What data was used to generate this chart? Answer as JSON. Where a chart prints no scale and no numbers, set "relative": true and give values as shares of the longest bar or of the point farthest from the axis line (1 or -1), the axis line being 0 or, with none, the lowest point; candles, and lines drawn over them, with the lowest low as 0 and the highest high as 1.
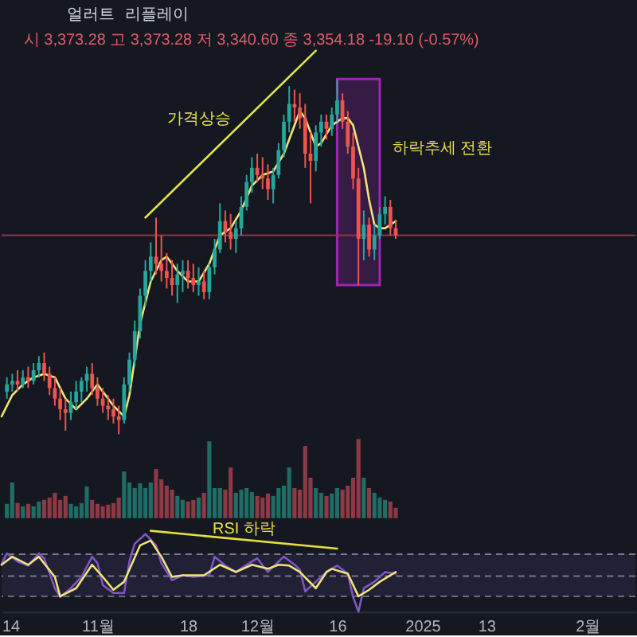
{
  "chart_data": [
    {
      "type": "candlestick",
      "relative": true,
      "subtitle": "시 3,373.28 고 3,373.28 저 3,340.60 종 3,354.18 -19.10 (-0.57%)",
      "annotations": [
        "얼러트",
        "리플레이"
      ],
      "x": [
        "2024-10-15",
        "2024-10-16",
        "2024-10-17",
        "2024-10-18",
        "2024-10-19",
        "2024-10-20",
        "2024-10-21",
        "2024-10-22",
        "2024-10-23",
        "2024-10-24",
        "2024-10-25",
        "2024-10-26",
        "2024-10-27",
        "2024-10-28",
        "2024-10-29",
        "2024-10-30",
        "2024-10-31",
        "2024-11-01",
        "2024-11-02",
        "2024-11-03",
        "2024-11-04",
        "2024-11-05",
        "2024-11-06",
        "2024-11-07",
        "2024-11-08",
        "2024-11-09",
        "2024-11-10",
        "2024-11-11",
        "2024-11-12",
        "2024-11-13",
        "2024-11-14",
        "2024-11-15",
        "2024-11-16",
        "2024-11-17",
        "2024-11-18",
        "2024-11-19",
        "2024-11-20",
        "2024-11-21",
        "2024-11-22",
        "2024-11-23",
        "2024-11-24",
        "2024-11-25",
        "2024-11-26",
        "2024-11-27",
        "2024-11-28",
        "2024-11-29",
        "2024-11-30",
        "2024-12-01",
        "2024-12-02",
        "2024-12-03",
        "2024-12-04",
        "2024-12-05",
        "2024-12-06",
        "2024-12-07",
        "2024-12-08",
        "2024-12-09",
        "2024-12-10",
        "2024-12-11",
        "2024-12-12",
        "2024-12-13",
        "2024-12-14",
        "2024-12-15",
        "2024-12-16",
        "2024-12-17",
        "2024-12-18",
        "2024-12-19",
        "2024-12-20",
        "2024-12-21",
        "2024-12-22",
        "2024-12-23",
        "2024-12-24",
        "2024-12-25",
        "2024-12-26",
        "2024-12-27"
      ],
      "ohlc": [
        [
          0.12,
          0.16,
          0.1,
          0.14
        ],
        [
          0.14,
          0.17,
          0.12,
          0.15
        ],
        [
          0.15,
          0.18,
          0.12,
          0.14
        ],
        [
          0.14,
          0.18,
          0.13,
          0.16
        ],
        [
          0.16,
          0.19,
          0.13,
          0.15
        ],
        [
          0.15,
          0.2,
          0.14,
          0.18
        ],
        [
          0.18,
          0.22,
          0.16,
          0.2
        ],
        [
          0.2,
          0.23,
          0.15,
          0.17
        ],
        [
          0.17,
          0.19,
          0.11,
          0.13
        ],
        [
          0.13,
          0.16,
          0.08,
          0.1
        ],
        [
          0.1,
          0.13,
          0.04,
          0.07
        ],
        [
          0.07,
          0.1,
          0.01,
          0.06
        ],
        [
          0.06,
          0.12,
          0.04,
          0.09
        ],
        [
          0.09,
          0.15,
          0.07,
          0.12
        ],
        [
          0.12,
          0.16,
          0.09,
          0.15
        ],
        [
          0.15,
          0.19,
          0.12,
          0.17
        ],
        [
          0.17,
          0.2,
          0.11,
          0.13
        ],
        [
          0.13,
          0.16,
          0.08,
          0.1
        ],
        [
          0.1,
          0.13,
          0.06,
          0.08
        ],
        [
          0.08,
          0.11,
          0.04,
          0.07
        ],
        [
          0.07,
          0.1,
          0.03,
          0.05
        ],
        [
          0.05,
          0.08,
          0.0,
          0.04
        ],
        [
          0.04,
          0.16,
          0.03,
          0.14
        ],
        [
          0.14,
          0.23,
          0.12,
          0.21
        ],
        [
          0.21,
          0.32,
          0.19,
          0.29
        ],
        [
          0.29,
          0.41,
          0.27,
          0.39
        ],
        [
          0.39,
          0.49,
          0.36,
          0.46
        ],
        [
          0.46,
          0.54,
          0.43,
          0.5
        ],
        [
          0.5,
          0.61,
          0.45,
          0.48
        ],
        [
          0.48,
          0.56,
          0.43,
          0.46
        ],
        [
          0.46,
          0.51,
          0.41,
          0.44
        ],
        [
          0.44,
          0.49,
          0.39,
          0.42
        ],
        [
          0.42,
          0.48,
          0.37,
          0.45
        ],
        [
          0.45,
          0.49,
          0.4,
          0.46
        ],
        [
          0.46,
          0.49,
          0.41,
          0.44
        ],
        [
          0.44,
          0.48,
          0.4,
          0.42
        ],
        [
          0.42,
          0.47,
          0.39,
          0.43
        ],
        [
          0.43,
          0.46,
          0.38,
          0.4
        ],
        [
          0.4,
          0.48,
          0.38,
          0.47
        ],
        [
          0.47,
          0.55,
          0.45,
          0.52
        ],
        [
          0.52,
          0.65,
          0.51,
          0.6
        ],
        [
          0.6,
          0.63,
          0.54,
          0.57
        ],
        [
          0.57,
          0.62,
          0.52,
          0.55
        ],
        [
          0.55,
          0.6,
          0.51,
          0.58
        ],
        [
          0.58,
          0.67,
          0.56,
          0.64
        ],
        [
          0.64,
          0.73,
          0.63,
          0.71
        ],
        [
          0.71,
          0.78,
          0.68,
          0.75
        ],
        [
          0.75,
          0.79,
          0.71,
          0.73
        ],
        [
          0.73,
          0.78,
          0.69,
          0.72
        ],
        [
          0.72,
          0.76,
          0.66,
          0.69
        ],
        [
          0.69,
          0.75,
          0.65,
          0.73
        ],
        [
          0.73,
          0.82,
          0.72,
          0.8
        ],
        [
          0.8,
          0.9,
          0.78,
          0.88
        ],
        [
          0.88,
          0.98,
          0.85,
          0.93
        ],
        [
          0.93,
          0.97,
          0.88,
          0.92
        ],
        [
          0.92,
          0.96,
          0.86,
          0.89
        ],
        [
          0.89,
          0.93,
          0.75,
          0.79
        ],
        [
          0.79,
          0.85,
          0.65,
          0.77
        ],
        [
          0.77,
          0.87,
          0.74,
          0.85
        ],
        [
          0.85,
          0.9,
          0.81,
          0.88
        ],
        [
          0.88,
          0.9,
          0.83,
          0.86
        ],
        [
          0.86,
          0.92,
          0.84,
          0.9
        ],
        [
          0.9,
          1.0,
          0.88,
          0.94
        ],
        [
          0.94,
          0.96,
          0.86,
          0.88
        ],
        [
          0.88,
          0.91,
          0.79,
          0.81
        ],
        [
          0.81,
          0.85,
          0.69,
          0.72
        ],
        [
          0.72,
          0.75,
          0.42,
          0.55
        ],
        [
          0.55,
          0.63,
          0.49,
          0.59
        ],
        [
          0.59,
          0.61,
          0.5,
          0.52
        ],
        [
          0.52,
          0.59,
          0.49,
          0.56
        ],
        [
          0.56,
          0.64,
          0.55,
          0.62
        ],
        [
          0.62,
          0.67,
          0.59,
          0.64
        ],
        [
          0.64,
          0.66,
          0.56,
          0.58
        ],
        [
          0.58,
          0.6,
          0.55,
          0.56
        ]
      ],
      "colors": [
        "#26a69a",
        "#26a69a",
        "#ef5350",
        "#26a69a",
        "#ef5350",
        "#26a69a",
        "#26a69a",
        "#ef5350",
        "#ef5350",
        "#ef5350",
        "#ef5350",
        "#ef5350",
        "#26a69a",
        "#26a69a",
        "#26a69a",
        "#26a69a",
        "#ef5350",
        "#ef5350",
        "#ef5350",
        "#ef5350",
        "#ef5350",
        "#ef5350",
        "#26a69a",
        "#26a69a",
        "#26a69a",
        "#26a69a",
        "#26a69a",
        "#26a69a",
        "#ef5350",
        "#ef5350",
        "#ef5350",
        "#ef5350",
        "#26a69a",
        "#26a69a",
        "#ef5350",
        "#ef5350",
        "#26a69a",
        "#ef5350",
        "#26a69a",
        "#26a69a",
        "#26a69a",
        "#ef5350",
        "#ef5350",
        "#26a69a",
        "#26a69a",
        "#26a69a",
        "#26a69a",
        "#ef5350",
        "#ef5350",
        "#ef5350",
        "#26a69a",
        "#26a69a",
        "#26a69a",
        "#26a69a",
        "#ef5350",
        "#ef5350",
        "#ef5350",
        "#ef5350",
        "#26a69a",
        "#26a69a",
        "#ef5350",
        "#26a69a",
        "#26a69a",
        "#ef5350",
        "#ef5350",
        "#ef5350",
        "#ef5350",
        "#26a69a",
        "#ef5350",
        "#26a69a",
        "#26a69a",
        "#26a69a",
        "#ef5350",
        "#ef5350"
      ],
      "series": [
        {
          "type": "line",
          "color": "#f2e37a",
          "x": [
            "2024-10-14",
            "2024-10-16",
            "2024-10-18",
            "2024-10-20",
            "2024-10-22",
            "2024-10-24",
            "2024-10-26",
            "2024-10-28",
            "2024-10-30",
            "2024-11-01",
            "2024-11-02",
            "2024-11-04",
            "2024-11-06",
            "2024-11-07",
            "2024-11-09",
            "2024-11-11",
            "2024-11-13",
            "2024-11-14",
            "2024-11-16",
            "2024-11-18",
            "2024-11-20",
            "2024-11-22",
            "2024-11-24",
            "2024-11-26",
            "2024-11-28",
            "2024-11-30",
            "2024-12-02",
            "2024-12-04",
            "2024-12-06",
            "2024-12-08",
            "2024-12-09",
            "2024-12-10",
            "2024-12-12",
            "2024-12-13",
            "2024-12-15",
            "2024-12-17",
            "2024-12-18",
            "2024-12-19",
            "2024-12-21",
            "2024-12-22",
            "2024-12-23",
            "2024-12-24",
            "2024-12-25",
            "2024-12-27"
          ],
          "values": [
            0.05,
            0.11,
            0.14,
            0.16,
            0.17,
            0.16,
            0.1,
            0.07,
            0.1,
            0.14,
            0.12,
            0.08,
            0.05,
            0.11,
            0.31,
            0.43,
            0.49,
            0.5,
            0.46,
            0.43,
            0.43,
            0.48,
            0.56,
            0.58,
            0.63,
            0.7,
            0.73,
            0.74,
            0.79,
            0.87,
            0.91,
            0.89,
            0.81,
            0.82,
            0.87,
            0.89,
            0.89,
            0.87,
            0.75,
            0.66,
            0.59,
            0.58,
            0.58,
            0.6
          ]
        },
        {
          "type": "line",
          "name": "가격상승",
          "color": "#e4e24a",
          "x": [
            "2024-11-10",
            "2024-12-12"
          ],
          "values": [
            0.61,
            1.08
          ]
        }
      ],
      "ref_lines": [
        {
          "axis": "y",
          "value": 0.56,
          "color": "#8e3347"
        }
      ],
      "bands": [
        {
          "axis": "x",
          "from": "2024-12-16",
          "to": "2024-12-24",
          "label": "하락추세 전환",
          "color": "#9c27b0"
        }
      ],
      "xlim": [
        "2024-10-14",
        "2025-02-10"
      ],
      "tick_labels": false
    },
    {
      "type": "bar",
      "relative": true,
      "x": [
        "2024-10-15",
        "2024-10-16",
        "2024-10-17",
        "2024-10-18",
        "2024-10-19",
        "2024-10-20",
        "2024-10-21",
        "2024-10-22",
        "2024-10-23",
        "2024-10-24",
        "2024-10-25",
        "2024-10-26",
        "2024-10-27",
        "2024-10-28",
        "2024-10-29",
        "2024-10-30",
        "2024-10-31",
        "2024-11-01",
        "2024-11-02",
        "2024-11-03",
        "2024-11-04",
        "2024-11-05",
        "2024-11-06",
        "2024-11-07",
        "2024-11-08",
        "2024-11-09",
        "2024-11-10",
        "2024-11-11",
        "2024-11-12",
        "2024-11-13",
        "2024-11-14",
        "2024-11-15",
        "2024-11-16",
        "2024-11-17",
        "2024-11-18",
        "2024-11-19",
        "2024-11-20",
        "2024-11-21",
        "2024-11-22",
        "2024-11-23",
        "2024-11-24",
        "2024-11-25",
        "2024-11-26",
        "2024-11-27",
        "2024-11-28",
        "2024-11-29",
        "2024-11-30",
        "2024-12-01",
        "2024-12-02",
        "2024-12-03",
        "2024-12-04",
        "2024-12-05",
        "2024-12-06",
        "2024-12-07",
        "2024-12-08",
        "2024-12-09",
        "2024-12-10",
        "2024-12-11",
        "2024-12-12",
        "2024-12-13",
        "2024-12-14",
        "2024-12-15",
        "2024-12-16",
        "2024-12-17",
        "2024-12-18",
        "2024-12-19",
        "2024-12-20",
        "2024-12-21",
        "2024-12-22",
        "2024-12-23",
        "2024-12-24",
        "2024-12-25",
        "2024-12-26",
        "2024-12-27"
      ],
      "values": [
        0.18,
        0.45,
        0.19,
        0.15,
        0.18,
        0.15,
        0.21,
        0.23,
        0.26,
        0.32,
        0.23,
        0.28,
        0.18,
        0.15,
        0.19,
        0.4,
        0.23,
        0.18,
        0.15,
        0.17,
        0.19,
        0.26,
        0.59,
        0.45,
        0.38,
        0.44,
        0.38,
        0.45,
        0.62,
        0.49,
        0.41,
        0.36,
        0.28,
        0.23,
        0.21,
        0.23,
        0.26,
        0.32,
        0.97,
        0.38,
        0.38,
        0.36,
        0.64,
        0.32,
        0.36,
        0.38,
        0.33,
        0.28,
        0.26,
        0.31,
        0.28,
        0.38,
        0.41,
        0.64,
        0.38,
        0.36,
        0.91,
        0.51,
        0.38,
        0.32,
        0.28,
        0.31,
        0.38,
        0.36,
        0.41,
        0.51,
        1.0,
        0.51,
        0.38,
        0.32,
        0.26,
        0.23,
        0.21,
        0.13
      ],
      "colors": [
        "#1f6d66",
        "#1f6d66",
        "#8c3a45",
        "#1f6d66",
        "#8c3a45",
        "#1f6d66",
        "#1f6d66",
        "#8c3a45",
        "#8c3a45",
        "#8c3a45",
        "#8c3a45",
        "#8c3a45",
        "#1f6d66",
        "#1f6d66",
        "#1f6d66",
        "#1f6d66",
        "#8c3a45",
        "#8c3a45",
        "#8c3a45",
        "#8c3a45",
        "#8c3a45",
        "#8c3a45",
        "#1f6d66",
        "#1f6d66",
        "#1f6d66",
        "#1f6d66",
        "#1f6d66",
        "#1f6d66",
        "#8c3a45",
        "#8c3a45",
        "#8c3a45",
        "#8c3a45",
        "#1f6d66",
        "#1f6d66",
        "#8c3a45",
        "#8c3a45",
        "#1f6d66",
        "#8c3a45",
        "#1f6d66",
        "#1f6d66",
        "#1f6d66",
        "#8c3a45",
        "#8c3a45",
        "#1f6d66",
        "#1f6d66",
        "#1f6d66",
        "#1f6d66",
        "#8c3a45",
        "#8c3a45",
        "#8c3a45",
        "#1f6d66",
        "#1f6d66",
        "#1f6d66",
        "#1f6d66",
        "#8c3a45",
        "#8c3a45",
        "#8c3a45",
        "#8c3a45",
        "#1f6d66",
        "#1f6d66",
        "#8c3a45",
        "#1f6d66",
        "#1f6d66",
        "#8c3a45",
        "#8c3a45",
        "#8c3a45",
        "#8c3a45",
        "#1f6d66",
        "#8c3a45",
        "#1f6d66",
        "#1f6d66",
        "#1f6d66",
        "#8c3a45",
        "#8c3a45"
      ],
      "xlim": [
        "2024-10-14",
        "2025-02-10"
      ],
      "tick_labels": false
    },
    {
      "type": "line",
      "relative": true,
      "series": [
        {
          "color": "#7e57c2",
          "x": [
            "2024-10-14",
            "2024-10-15",
            "2024-10-17",
            "2024-10-19",
            "2024-10-21",
            "2024-10-22",
            "2024-10-24",
            "2024-10-25",
            "2024-10-27",
            "2024-10-29",
            "2024-10-31",
            "2024-11-01",
            "2024-11-02",
            "2024-11-04",
            "2024-11-06",
            "2024-11-07",
            "2024-11-08",
            "2024-11-10",
            "2024-11-12",
            "2024-11-13",
            "2024-11-15",
            "2024-11-17",
            "2024-11-19",
            "2024-11-22",
            "2024-11-23",
            "2024-11-25",
            "2024-11-27",
            "2024-11-29",
            "2024-12-01",
            "2024-12-03",
            "2024-12-05",
            "2024-12-06",
            "2024-12-08",
            "2024-12-09",
            "2024-12-10",
            "2024-12-12",
            "2024-12-14",
            "2024-12-16",
            "2024-12-18",
            "2024-12-19",
            "2024-12-20",
            "2024-12-21",
            "2024-12-23",
            "2024-12-25",
            "2024-12-27"
          ],
          "values": [
            0.59,
            0.72,
            0.62,
            0.57,
            0.72,
            0.66,
            0.29,
            0.18,
            0.29,
            0.43,
            0.68,
            0.6,
            0.33,
            0.23,
            0.23,
            0.62,
            0.84,
            0.96,
            0.82,
            0.6,
            0.39,
            0.45,
            0.43,
            0.45,
            0.68,
            0.57,
            0.49,
            0.58,
            0.66,
            0.49,
            0.62,
            0.68,
            0.58,
            0.52,
            0.25,
            0.37,
            0.49,
            0.57,
            0.47,
            0.18,
            0.0,
            0.29,
            0.37,
            0.49,
            0.47
          ]
        },
        {
          "color": "#f2e37a",
          "x": [
            "2024-10-14",
            "2024-10-16",
            "2024-10-19",
            "2024-10-21",
            "2024-10-24",
            "2024-10-25",
            "2024-10-28",
            "2024-10-31",
            "2024-11-02",
            "2024-11-04",
            "2024-11-06",
            "2024-11-09",
            "2024-11-11",
            "2024-11-13",
            "2024-11-15",
            "2024-11-17",
            "2024-11-21",
            "2024-11-24",
            "2024-11-27",
            "2024-11-30",
            "2024-12-03",
            "2024-12-05",
            "2024-12-07",
            "2024-12-09",
            "2024-12-12",
            "2024-12-14",
            "2024-12-15",
            "2024-12-18",
            "2024-12-20",
            "2024-12-22",
            "2024-12-24",
            "2024-12-27"
          ],
          "values": [
            0.58,
            0.68,
            0.58,
            0.68,
            0.43,
            0.19,
            0.29,
            0.58,
            0.43,
            0.27,
            0.37,
            0.82,
            0.88,
            0.68,
            0.43,
            0.45,
            0.45,
            0.58,
            0.49,
            0.58,
            0.53,
            0.58,
            0.57,
            0.49,
            0.29,
            0.49,
            0.53,
            0.47,
            0.19,
            0.27,
            0.37,
            0.49
          ]
        },
        {
          "name": "RSI 하락",
          "color": "#e6e03c",
          "x": [
            "2024-11-11",
            "2024-12-16"
          ],
          "values": [
            1.0,
            0.78
          ]
        }
      ],
      "bands": [
        {
          "axis": "y",
          "from": 0.19,
          "to": 0.71,
          "color": "#7e57c2"
        }
      ],
      "ref_lines": [
        {
          "axis": "y",
          "value": 0.71,
          "color": "#787b86",
          "line_style": "dashed"
        },
        {
          "axis": "y",
          "value": 0.44,
          "color": "#787b86",
          "line_style": "dashed"
        },
        {
          "axis": "y",
          "value": 0.19,
          "color": "#787b86",
          "line_style": "dashed"
        }
      ],
      "xlim": [
        "2024-10-14",
        "2025-02-10"
      ],
      "xticks": [
        {
          "value": "2024-10-14",
          "label": "14"
        },
        {
          "value": "2024-11-01",
          "label": "11월"
        },
        {
          "value": "2024-11-18",
          "label": "18"
        },
        {
          "value": "2024-12-01",
          "label": "12월"
        },
        {
          "value": "2024-12-16",
          "label": "16"
        },
        {
          "value": "2025-01-01",
          "label": "2025"
        },
        {
          "value": "2025-01-13",
          "label": "13"
        },
        {
          "value": "2025-02-01",
          "label": "2월"
        }
      ]
    }
  ]
}
